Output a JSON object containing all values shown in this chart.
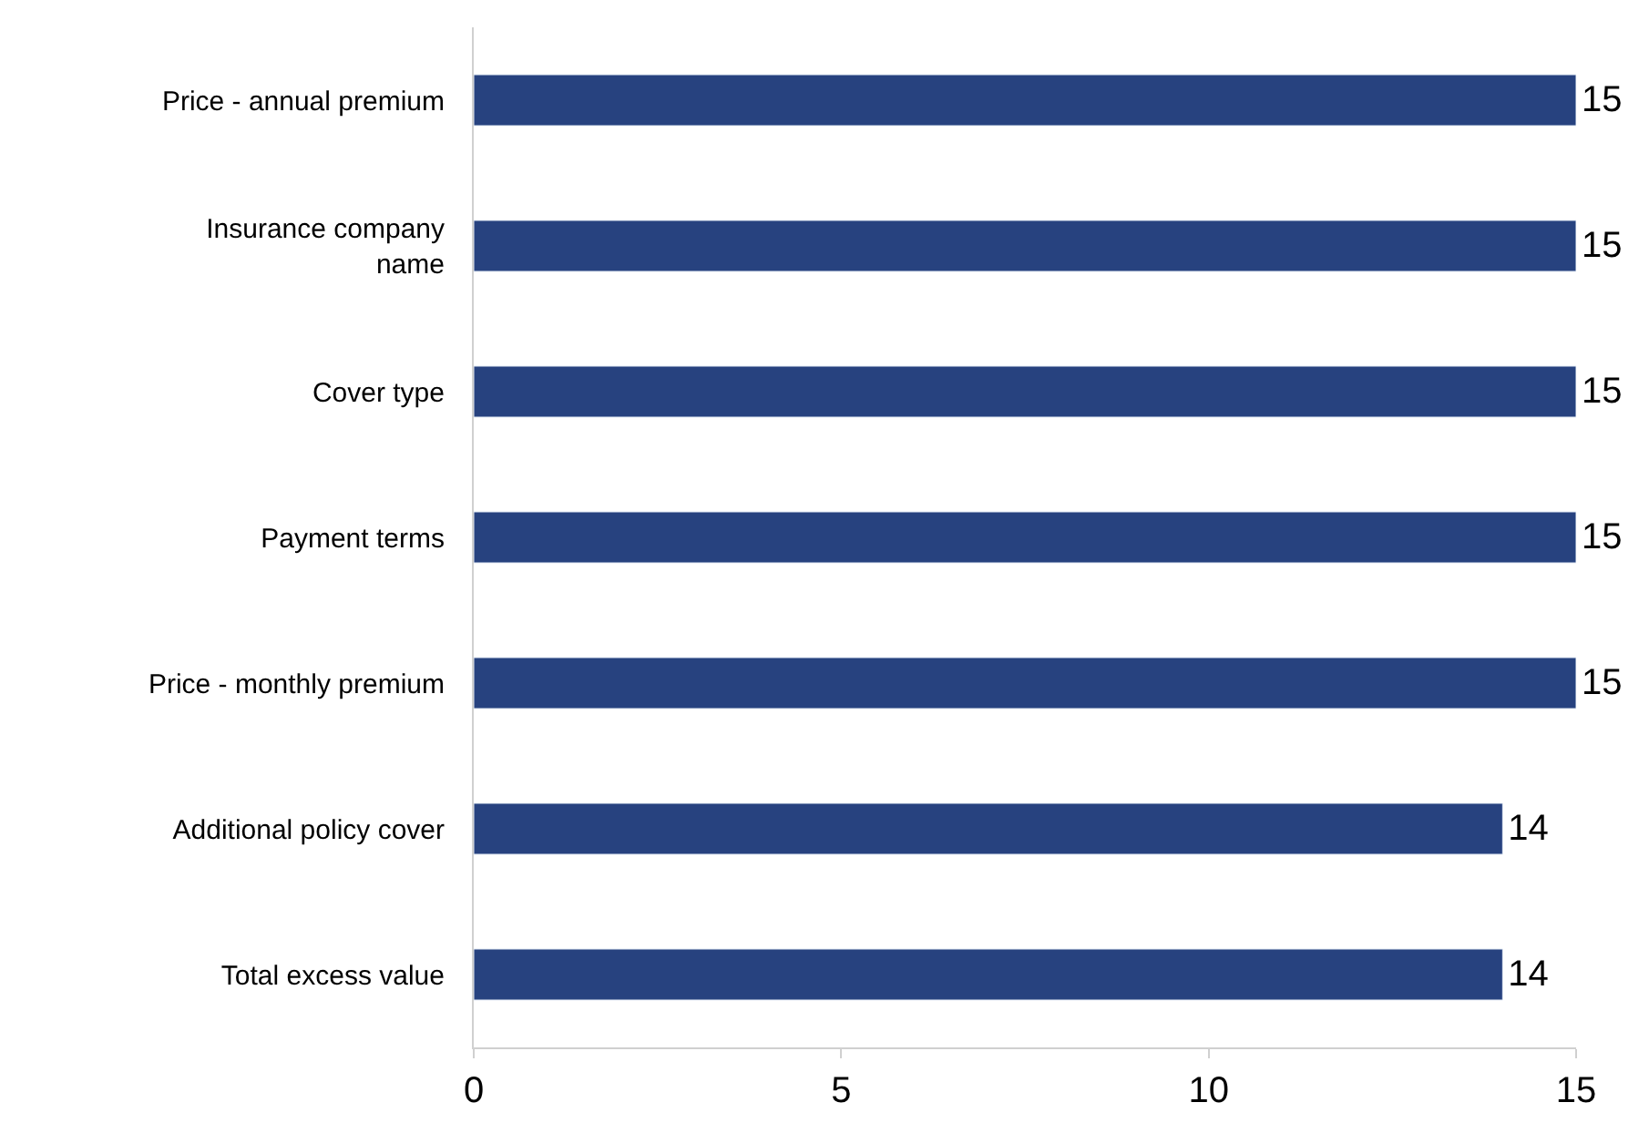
{
  "chart_data": {
    "type": "bar",
    "orientation": "horizontal",
    "categories": [
      "Price - annual premium",
      "Insurance company\nname",
      "Cover type",
      "Payment terms",
      "Price - monthly premium",
      "Additional policy cover",
      "Total excess value"
    ],
    "values": [
      15,
      15,
      15,
      15,
      15,
      14,
      14
    ],
    "color": "#27427f",
    "xlim": [
      0,
      15
    ],
    "xticks": [
      0,
      5,
      10,
      15
    ],
    "data_labels": true
  }
}
